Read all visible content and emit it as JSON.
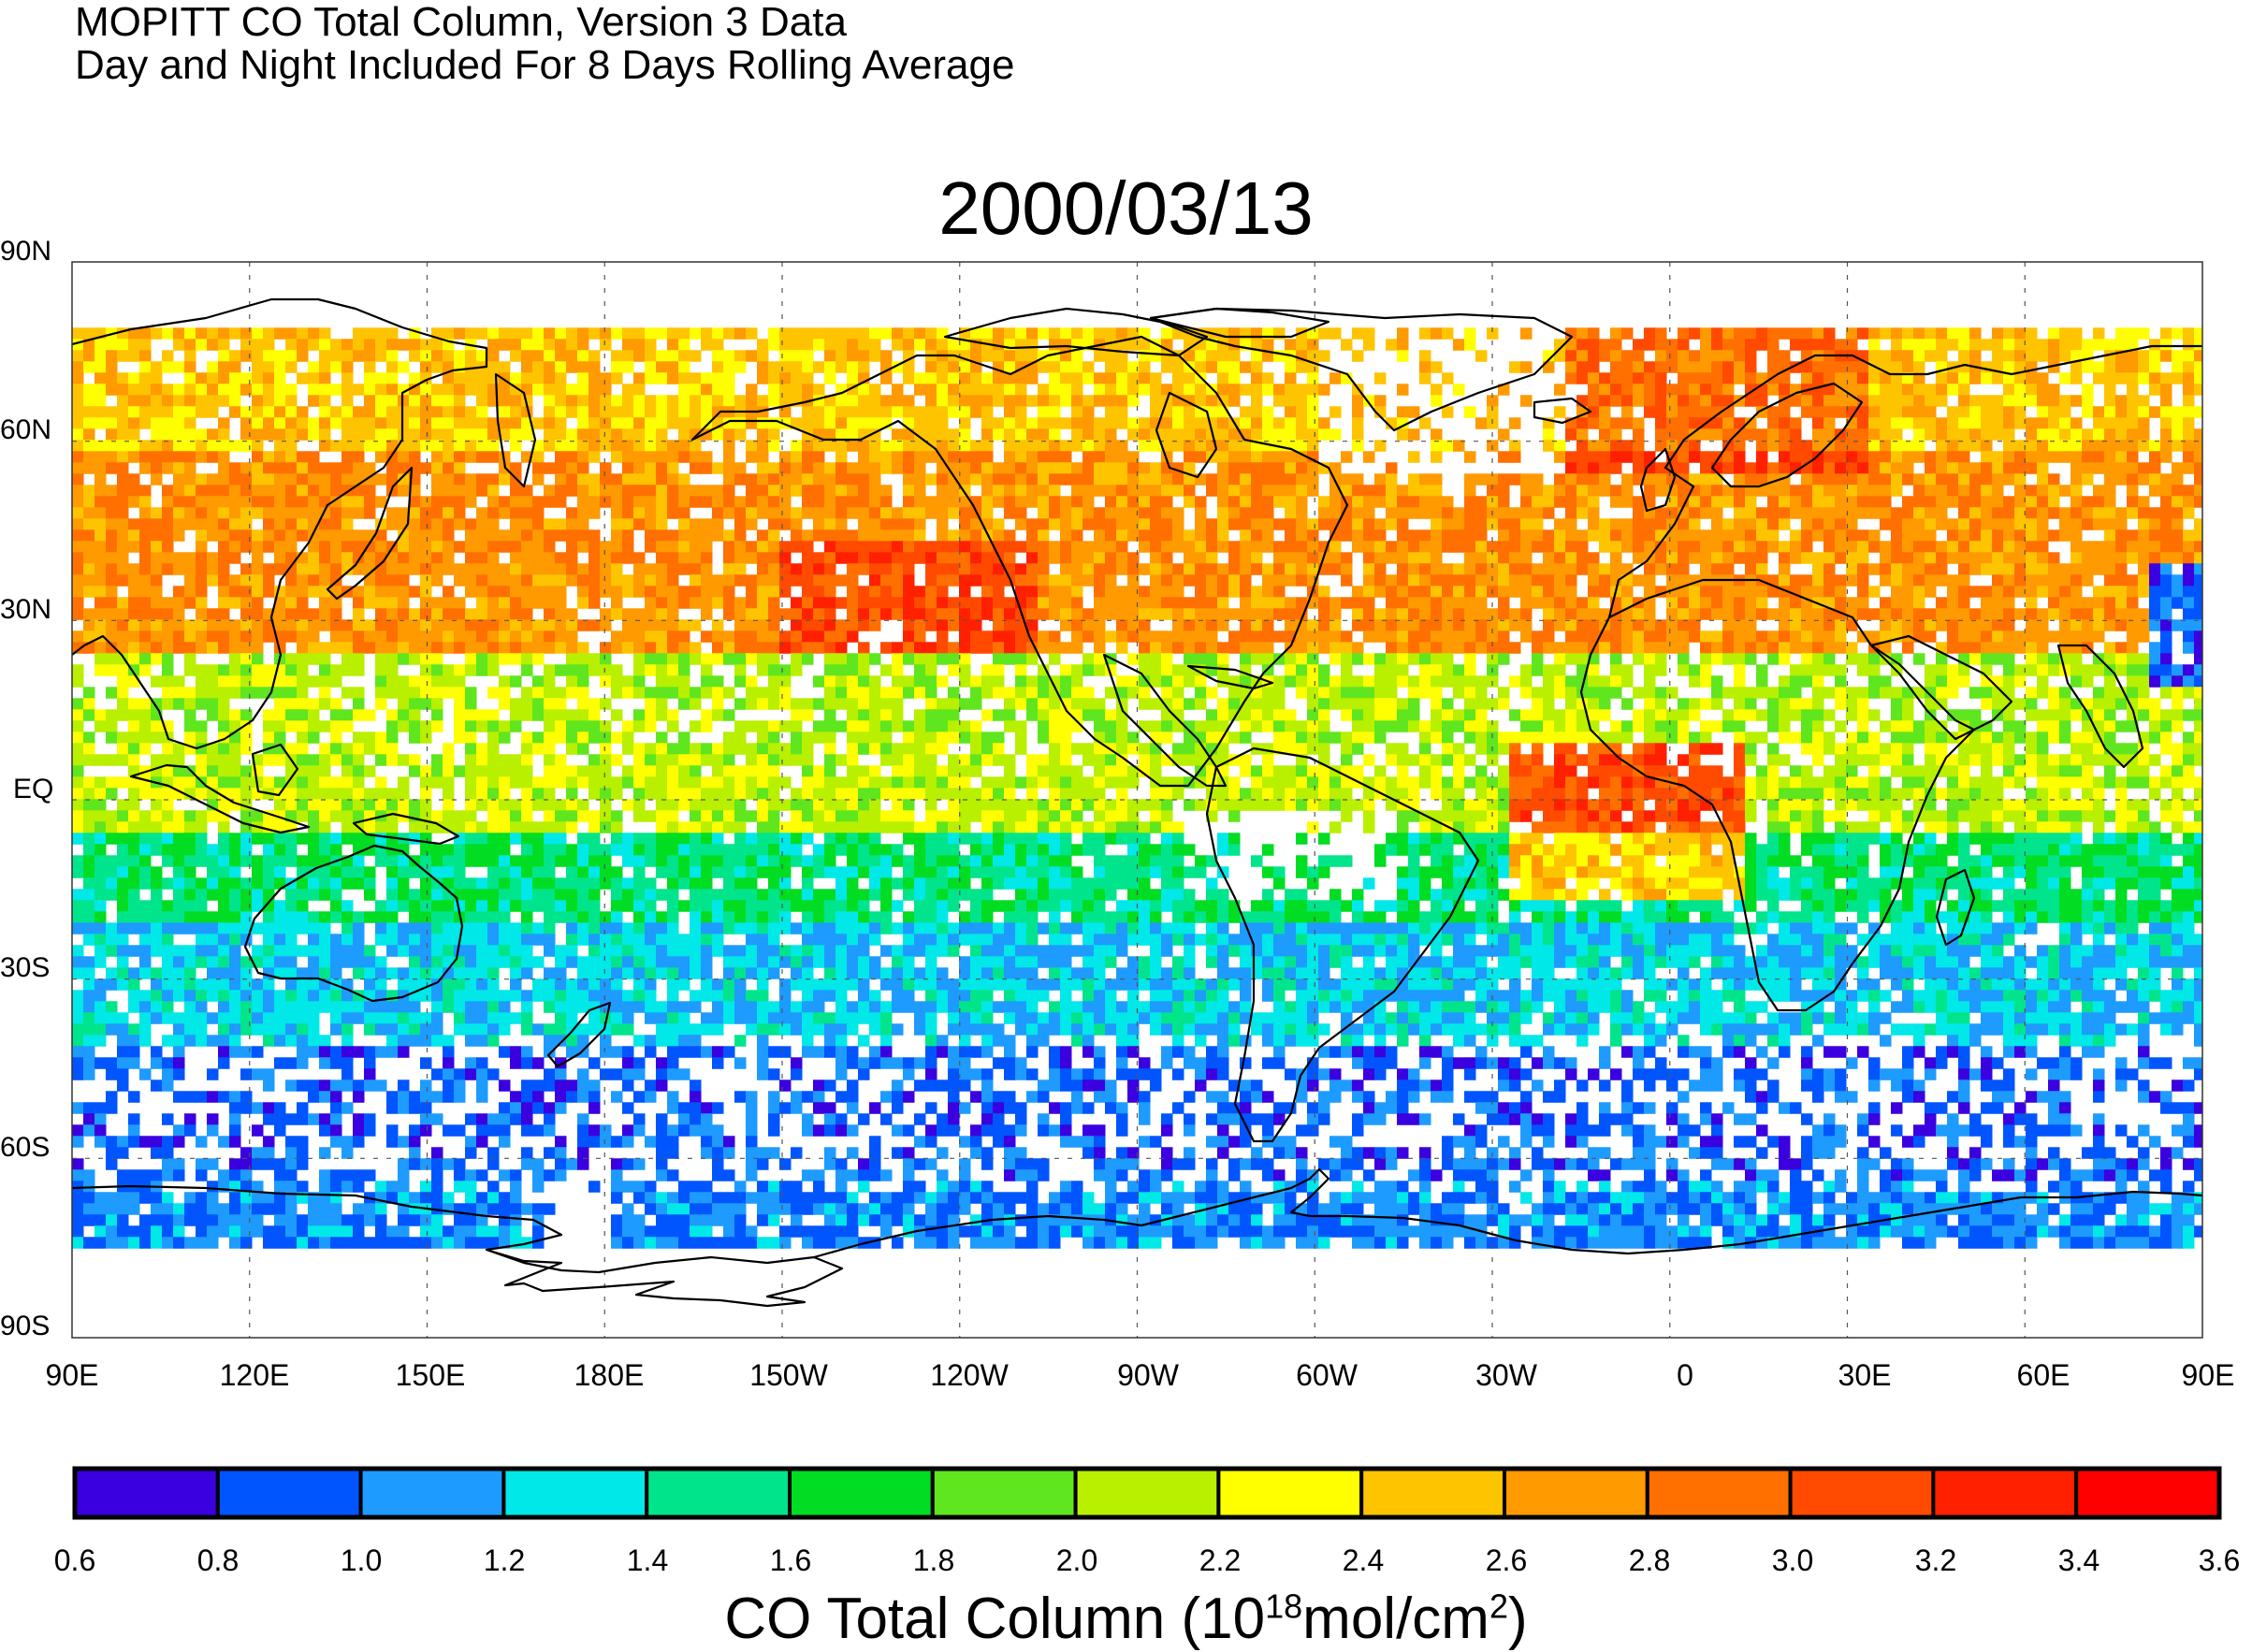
{
  "header": {
    "line1": "MOPITT CO Total Column, Version 3 Data",
    "line2": "Day and Night Included For 8 Days Rolling Average"
  },
  "map": {
    "title": "2000/03/13",
    "lat_labels": [
      "90N",
      "60N",
      "30N",
      "EQ",
      "30S",
      "60S",
      "90S"
    ],
    "lon_labels": [
      "90E",
      "120E",
      "150E",
      "180E",
      "150W",
      "120W",
      "90W",
      "60W",
      "30W",
      "0",
      "30E",
      "60E",
      "90E"
    ]
  },
  "colorbar": {
    "ticks": [
      "0.6",
      "0.8",
      "1.0",
      "1.2",
      "1.4",
      "1.6",
      "1.8",
      "2.0",
      "2.2",
      "2.4",
      "2.6",
      "2.8",
      "3.0",
      "3.2",
      "3.4",
      "3.6"
    ],
    "colors": [
      "#3a00e0",
      "#0055ff",
      "#1e9bff",
      "#00e8e8",
      "#00e58c",
      "#00dd22",
      "#5fe61e",
      "#b8f000",
      "#ffff00",
      "#ffc400",
      "#ff9a00",
      "#ff7000",
      "#ff4a00",
      "#ff2000",
      "#ff0000"
    ],
    "title_main": "CO Total Column (10",
    "title_sup1": "18",
    "title_mid": "mol/cm",
    "title_sup2": "2",
    "title_end": ")"
  },
  "chart_data": {
    "type": "heatmap",
    "title": "2000/03/13",
    "xlabel": "",
    "ylabel": "",
    "legend_title": "CO Total Column (10^18 mol/cm^2)",
    "value_range": [
      0.6,
      3.6
    ],
    "lon_range_label": [
      "90E",
      "90E"
    ],
    "lat_range_label": [
      "90S",
      "90N"
    ],
    "grid": true,
    "lat_band_mean_values": {
      "70N": 2.6,
      "50N": 2.8,
      "35N": 2.8,
      "20N": 2.1,
      "5N": 2.2,
      "10S": 1.5,
      "30S": 1.2,
      "50S": 0.9,
      "70S": 1.0
    }
  }
}
